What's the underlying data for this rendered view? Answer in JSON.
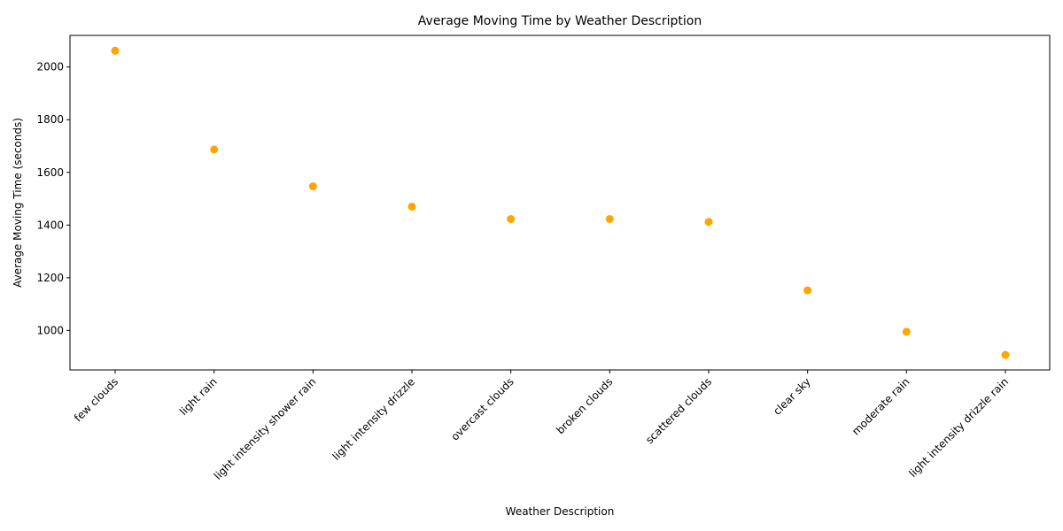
{
  "chart_data": {
    "type": "scatter",
    "title": "Average Moving Time by Weather Description",
    "xlabel": "Weather Description",
    "ylabel": "Average Moving Time (seconds)",
    "categories": [
      "few clouds",
      "light rain",
      "light intensity shower rain",
      "light intensity drizzle",
      "overcast clouds",
      "broken clouds",
      "scattered clouds",
      "clear sky",
      "moderate rain",
      "light intensity drizzle rain"
    ],
    "values": [
      2062,
      1687,
      1547,
      1470,
      1423,
      1423,
      1412,
      1152,
      995,
      907
    ],
    "ylim": [
      850,
      2120
    ],
    "yticks": [
      1000,
      1200,
      1400,
      1600,
      1800,
      2000
    ],
    "grid": false,
    "legend": "none",
    "colors": {
      "marker": "#ffa500",
      "axis": "#000000",
      "background": "#ffffff"
    }
  }
}
